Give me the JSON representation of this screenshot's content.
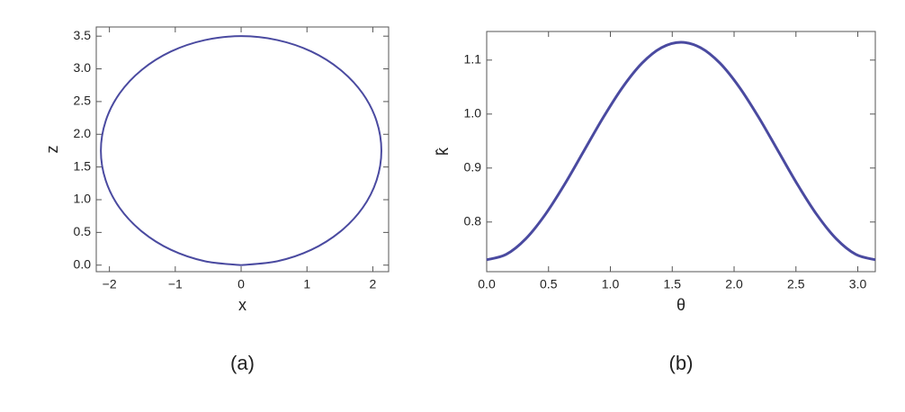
{
  "chart_data": [
    {
      "type": "line",
      "caption": "(a)",
      "x_label": "x",
      "y_label": "z",
      "x": [
        0,
        0.551,
        1.065,
        1.506,
        1.845,
        2.057,
        2.13,
        2.057,
        1.845,
        1.506,
        1.065,
        0.551,
        0,
        -0.551,
        -1.065,
        -1.506,
        -1.845,
        -2.057,
        -2.13,
        -2.057,
        -1.845,
        -1.506,
        -1.065,
        -0.551,
        0
      ],
      "series": [
        {
          "color": "#4a4aa0",
          "values": [
            0,
            0.06,
            0.234,
            0.513,
            0.875,
            1.297,
            1.75,
            2.203,
            2.625,
            2.987,
            3.266,
            3.44,
            3.5,
            3.44,
            3.266,
            2.987,
            2.625,
            2.203,
            1.75,
            1.297,
            0.875,
            0.513,
            0.234,
            0.06,
            0
          ]
        }
      ],
      "xlim": [
        -2.2,
        2.24
      ],
      "ylim": [
        -0.1,
        3.64
      ],
      "xticks": [
        {
          "value": -2,
          "label": "−2"
        },
        {
          "value": -1,
          "label": "−1"
        },
        0,
        1,
        2
      ],
      "yticks": [
        {
          "value": 0,
          "label": "0.0"
        },
        0.5,
        {
          "value": 1,
          "label": "1.0"
        },
        1.5,
        {
          "value": 2,
          "label": "2.0"
        },
        2.5,
        {
          "value": 3,
          "label": "3.0"
        },
        3.5
      ],
      "line_width": 2
    },
    {
      "type": "line",
      "caption": "(b)",
      "x_label": "θ",
      "y_label": "k̂",
      "x": [
        0,
        0.1571,
        0.3142,
        0.4712,
        0.6283,
        0.7854,
        0.9425,
        1.0996,
        1.2566,
        1.4137,
        1.5708,
        1.7279,
        1.885,
        2.042,
        2.1991,
        2.3562,
        2.5133,
        2.6704,
        2.8274,
        2.9845,
        3.1416
      ],
      "series": [
        {
          "color": "#4a4aa0",
          "values": [
            0.73,
            0.7399,
            0.7685,
            0.8131,
            0.8692,
            0.9315,
            0.9938,
            1.0499,
            1.0945,
            1.1231,
            1.133,
            1.1231,
            1.0945,
            1.0499,
            0.9938,
            0.9315,
            0.8692,
            0.8131,
            0.7685,
            0.7399,
            0.73
          ]
        }
      ],
      "xlim": [
        0,
        3.1416
      ],
      "ylim": [
        0.708,
        1.153
      ],
      "xticks": [
        {
          "value": 0,
          "label": "0.0"
        },
        0.5,
        {
          "value": 1,
          "label": "1.0"
        },
        1.5,
        {
          "value": 2,
          "label": "2.0"
        },
        2.5,
        {
          "value": 3,
          "label": "3.0"
        }
      ],
      "yticks": [
        0.8,
        0.9,
        {
          "value": 1,
          "label": "1.0"
        },
        1.1
      ],
      "line_width": 3
    }
  ]
}
